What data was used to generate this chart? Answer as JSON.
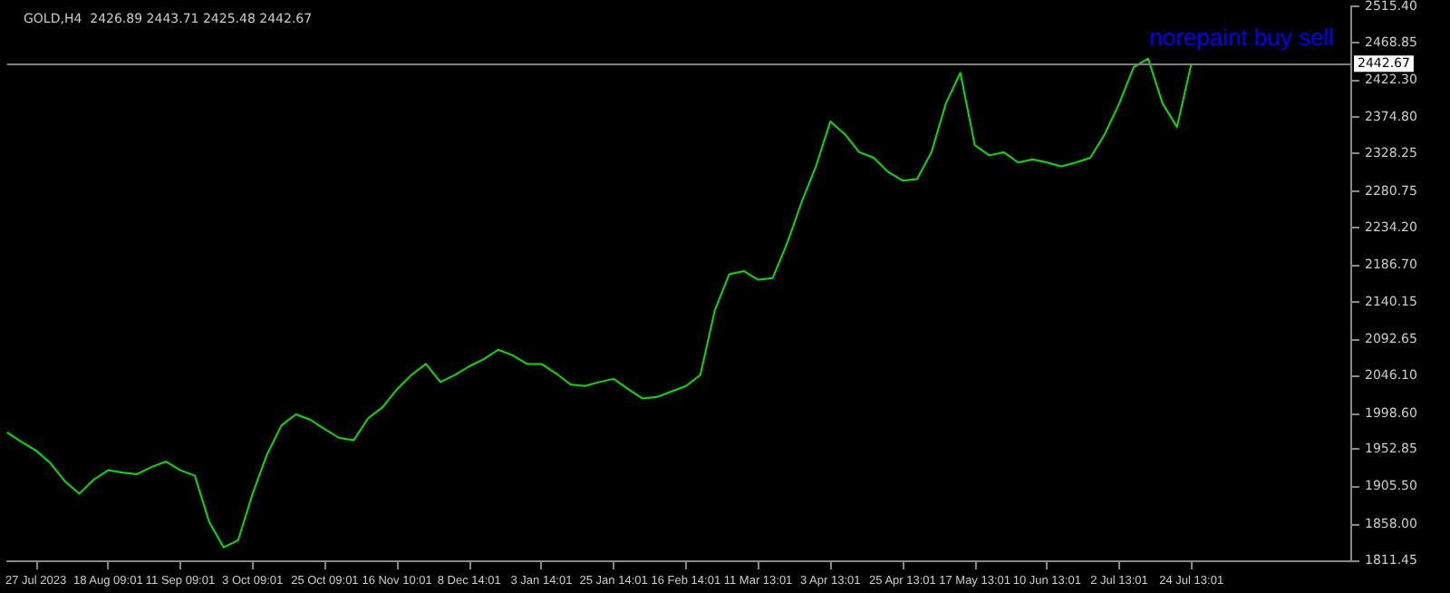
{
  "chart_data": {
    "type": "line",
    "title": "GOLD,H4  2426.89 2443.71 2425.48 2442.67",
    "annotations": [
      "norepaint buy sell"
    ],
    "categories": [
      null,
      null,
      "27 Jul 2023",
      null,
      null,
      null,
      null,
      "18 Aug 09:01",
      null,
      null,
      null,
      null,
      "11 Sep 09:01",
      null,
      null,
      null,
      null,
      "3 Oct 09:01",
      null,
      null,
      null,
      null,
      "25 Oct 09:01",
      null,
      null,
      null,
      null,
      "16 Nov 10:01",
      null,
      null,
      null,
      null,
      "8 Dec 14:01",
      null,
      null,
      null,
      null,
      "3 Jan 14:01",
      null,
      null,
      null,
      null,
      "25 Jan 14:01",
      null,
      null,
      null,
      null,
      "16 Feb 14:01",
      null,
      null,
      null,
      null,
      "11 Mar 13:01",
      null,
      null,
      null,
      null,
      "3 Apr 13:01",
      null,
      null,
      null,
      null,
      "25 Apr 13:01",
      null,
      null,
      null,
      null,
      "17 May 13:01",
      null,
      null,
      null,
      null,
      "10 Jun 13:01",
      null,
      null,
      null,
      null,
      "2 Jul 13:01",
      null,
      null,
      null,
      null,
      "24 Jul 13:01",
      null,
      null,
      null,
      null,
      null,
      null,
      null,
      null,
      null,
      null,
      null
    ],
    "series": [
      {
        "color": "#00e000",
        "values": [
          1974,
          1962,
          1951,
          1935,
          1912,
          1896,
          1914,
          1926,
          1923,
          1921,
          1930,
          1937,
          1926,
          1919,
          1860,
          1828,
          1837,
          1896,
          1946,
          1983,
          1997,
          1990,
          1978,
          1967,
          1964,
          1992,
          2006,
          2029,
          2047,
          2061,
          2038,
          2047,
          2058,
          2067,
          2079,
          2072,
          2061,
          2061,
          2049,
          2035,
          2033,
          2038,
          2042,
          2029,
          2017,
          2019,
          2026,
          2033,
          2047,
          2129,
          2175,
          2179,
          2168,
          2170,
          2214,
          2266,
          2312,
          2369,
          2353,
          2330,
          2323,
          2305,
          2294,
          2296,
          2330,
          2392,
          2431,
          2339,
          2326,
          2330,
          2317,
          2321,
          2317,
          2312,
          2317,
          2323,
          2353,
          2392,
          2438,
          2449,
          2392,
          2362,
          2443,
          null,
          null,
          null,
          null,
          null,
          null,
          null,
          null,
          null,
          null,
          null
        ]
      }
    ],
    "ylim": [
      1811.45,
      2515.4
    ],
    "yticks": [
      {
        "value": 2515.4,
        "label": "2515.40"
      },
      {
        "value": 2468.85,
        "label": "2468.85"
      },
      {
        "value": 2422.3,
        "label": "2422.30"
      },
      {
        "value": 2374.8,
        "label": "2374.80"
      },
      {
        "value": 2328.25,
        "label": "2328.25"
      },
      {
        "value": 2280.75,
        "label": "2280.75"
      },
      {
        "value": 2234.2,
        "label": "2234.20"
      },
      {
        "value": 2186.7,
        "label": "2186.70"
      },
      {
        "value": 2140.15,
        "label": "2140.15"
      },
      {
        "value": 2092.65,
        "label": "2092.65"
      },
      {
        "value": 2046.1,
        "label": "2046.10"
      },
      {
        "value": 1998.6,
        "label": "1998.60"
      },
      {
        "value": 1952.85,
        "label": "1952.85"
      },
      {
        "value": 1905.5,
        "label": "1905.50"
      },
      {
        "value": 1858.0,
        "label": "1858.00"
      },
      {
        "value": 1811.45,
        "label": "1811.45"
      }
    ],
    "ref_lines": [
      {
        "axis": "y",
        "value": 2442.67,
        "label": "2442.67",
        "color": "#808080"
      }
    ],
    "grid": false,
    "marker": "none",
    "line_style": "solid"
  }
}
